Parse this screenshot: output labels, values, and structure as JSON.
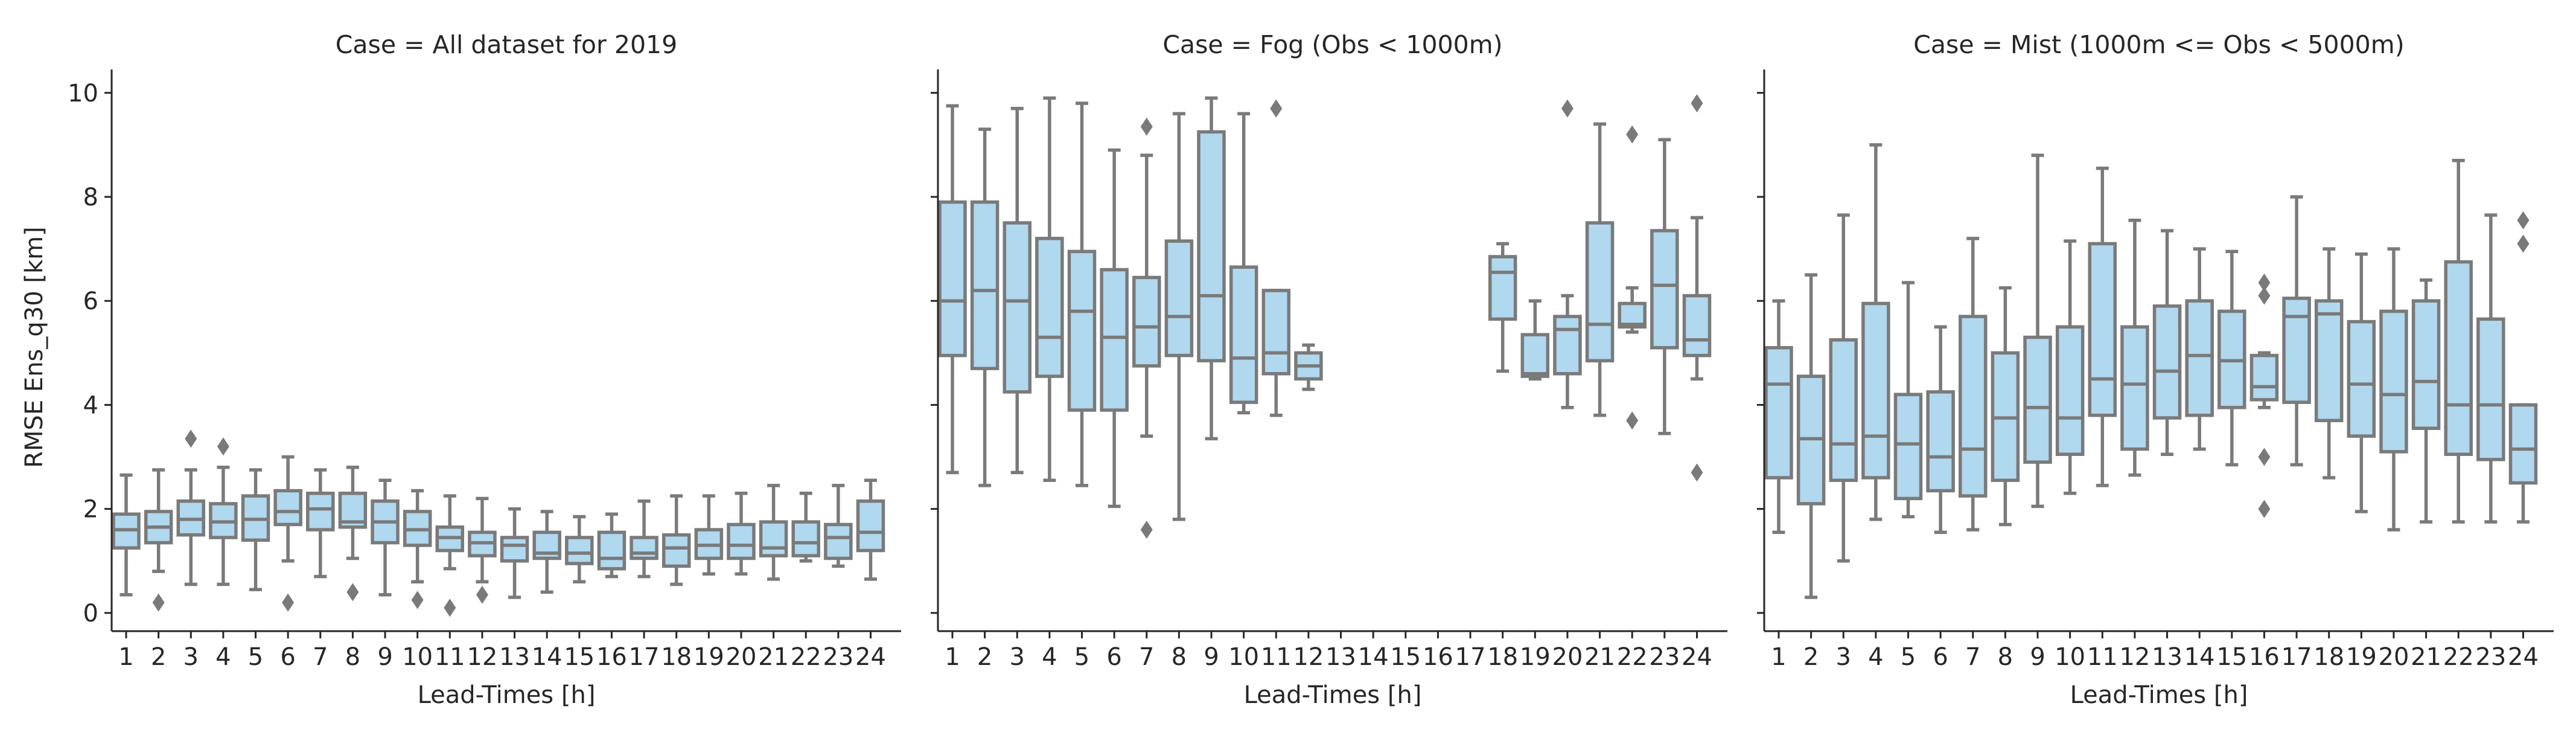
{
  "colors": {
    "box_fill": "#b0d8ee",
    "box_line": "#7a7a7a",
    "text": "#262626"
  },
  "chart_data": [
    {
      "type": "box",
      "title": "Case = All dataset for 2019",
      "xlabel": "Lead-Times [h]",
      "ylabel": "RMSE Ens_q30 [km]",
      "ylim": [
        -0.35,
        10.45
      ],
      "yticks": [
        0,
        2,
        4,
        6,
        8,
        10
      ],
      "categories": [
        "1",
        "2",
        "3",
        "4",
        "5",
        "6",
        "7",
        "8",
        "9",
        "10",
        "11",
        "12",
        "13",
        "14",
        "15",
        "16",
        "17",
        "18",
        "19",
        "20",
        "21",
        "22",
        "23",
        "24"
      ],
      "boxes": [
        {
          "lo": 0.35,
          "q1": 1.25,
          "med": 1.6,
          "q3": 1.9,
          "hi": 2.65,
          "fliers": []
        },
        {
          "lo": 0.8,
          "q1": 1.35,
          "med": 1.65,
          "q3": 1.95,
          "hi": 2.75,
          "fliers": [
            0.2
          ]
        },
        {
          "lo": 0.55,
          "q1": 1.5,
          "med": 1.8,
          "q3": 2.15,
          "hi": 2.75,
          "fliers": [
            3.35
          ]
        },
        {
          "lo": 0.55,
          "q1": 1.45,
          "med": 1.75,
          "q3": 2.1,
          "hi": 2.8,
          "fliers": [
            3.2
          ]
        },
        {
          "lo": 0.45,
          "q1": 1.4,
          "med": 1.8,
          "q3": 2.25,
          "hi": 2.75,
          "fliers": []
        },
        {
          "lo": 1.0,
          "q1": 1.7,
          "med": 1.95,
          "q3": 2.35,
          "hi": 3.0,
          "fliers": [
            0.2
          ]
        },
        {
          "lo": 0.7,
          "q1": 1.6,
          "med": 2.0,
          "q3": 2.3,
          "hi": 2.75,
          "fliers": []
        },
        {
          "lo": 1.05,
          "q1": 1.65,
          "med": 1.75,
          "q3": 2.3,
          "hi": 2.8,
          "fliers": [
            0.4
          ]
        },
        {
          "lo": 0.35,
          "q1": 1.35,
          "med": 1.75,
          "q3": 2.15,
          "hi": 2.55,
          "fliers": []
        },
        {
          "lo": 0.6,
          "q1": 1.3,
          "med": 1.6,
          "q3": 1.95,
          "hi": 2.35,
          "fliers": [
            0.25
          ]
        },
        {
          "lo": 0.85,
          "q1": 1.2,
          "med": 1.45,
          "q3": 1.65,
          "hi": 2.25,
          "fliers": [
            0.1
          ]
        },
        {
          "lo": 0.6,
          "q1": 1.1,
          "med": 1.35,
          "q3": 1.55,
          "hi": 2.2,
          "fliers": [
            0.35
          ]
        },
        {
          "lo": 0.3,
          "q1": 1.0,
          "med": 1.3,
          "q3": 1.45,
          "hi": 2.0,
          "fliers": []
        },
        {
          "lo": 0.4,
          "q1": 1.05,
          "med": 1.15,
          "q3": 1.55,
          "hi": 1.95,
          "fliers": []
        },
        {
          "lo": 0.6,
          "q1": 0.95,
          "med": 1.15,
          "q3": 1.45,
          "hi": 1.85,
          "fliers": []
        },
        {
          "lo": 0.7,
          "q1": 0.85,
          "med": 1.05,
          "q3": 1.55,
          "hi": 1.9,
          "fliers": []
        },
        {
          "lo": 0.7,
          "q1": 1.05,
          "med": 1.15,
          "q3": 1.45,
          "hi": 2.15,
          "fliers": []
        },
        {
          "lo": 0.55,
          "q1": 0.9,
          "med": 1.25,
          "q3": 1.5,
          "hi": 2.25,
          "fliers": []
        },
        {
          "lo": 0.75,
          "q1": 1.05,
          "med": 1.3,
          "q3": 1.6,
          "hi": 2.25,
          "fliers": []
        },
        {
          "lo": 0.75,
          "q1": 1.05,
          "med": 1.3,
          "q3": 1.7,
          "hi": 2.3,
          "fliers": []
        },
        {
          "lo": 0.65,
          "q1": 1.1,
          "med": 1.25,
          "q3": 1.75,
          "hi": 2.45,
          "fliers": []
        },
        {
          "lo": 1.0,
          "q1": 1.1,
          "med": 1.35,
          "q3": 1.75,
          "hi": 2.3,
          "fliers": []
        },
        {
          "lo": 0.9,
          "q1": 1.05,
          "med": 1.45,
          "q3": 1.7,
          "hi": 2.45,
          "fliers": []
        },
        {
          "lo": 0.65,
          "q1": 1.2,
          "med": 1.55,
          "q3": 2.15,
          "hi": 2.55,
          "fliers": []
        }
      ]
    },
    {
      "type": "box",
      "title": "Case = Fog (Obs < 1000m)",
      "xlabel": "Lead-Times [h]",
      "ylim": [
        -0.35,
        10.45
      ],
      "yticks": [
        0,
        2,
        4,
        6,
        8,
        10
      ],
      "categories": [
        "1",
        "2",
        "3",
        "4",
        "5",
        "6",
        "7",
        "8",
        "9",
        "10",
        "11",
        "12",
        "13",
        "14",
        "15",
        "16",
        "17",
        "18",
        "19",
        "20",
        "21",
        "22",
        "23",
        "24"
      ],
      "boxes": [
        {
          "lo": 2.7,
          "q1": 4.95,
          "med": 6.0,
          "q3": 7.9,
          "hi": 9.75,
          "fliers": []
        },
        {
          "lo": 2.45,
          "q1": 4.7,
          "med": 6.2,
          "q3": 7.9,
          "hi": 9.3,
          "fliers": []
        },
        {
          "lo": 2.7,
          "q1": 4.25,
          "med": 6.0,
          "q3": 7.5,
          "hi": 9.7,
          "fliers": []
        },
        {
          "lo": 2.55,
          "q1": 4.55,
          "med": 5.3,
          "q3": 7.2,
          "hi": 9.9,
          "fliers": []
        },
        {
          "lo": 2.45,
          "q1": 3.9,
          "med": 5.8,
          "q3": 6.95,
          "hi": 9.8,
          "fliers": []
        },
        {
          "lo": 2.05,
          "q1": 3.9,
          "med": 5.3,
          "q3": 6.6,
          "hi": 8.9,
          "fliers": []
        },
        {
          "lo": 3.4,
          "q1": 4.75,
          "med": 5.5,
          "q3": 6.45,
          "hi": 8.8,
          "fliers": [
            1.6,
            9.35
          ]
        },
        {
          "lo": 1.8,
          "q1": 4.95,
          "med": 5.7,
          "q3": 7.15,
          "hi": 9.6,
          "fliers": []
        },
        {
          "lo": 3.35,
          "q1": 4.85,
          "med": 6.1,
          "q3": 9.25,
          "hi": 9.9,
          "fliers": []
        },
        {
          "lo": 3.85,
          "q1": 4.05,
          "med": 4.9,
          "q3": 6.65,
          "hi": 9.6,
          "fliers": []
        },
        {
          "lo": 3.8,
          "q1": 4.6,
          "med": 5.0,
          "q3": 6.2,
          "hi": 6.2,
          "fliers": [
            9.7
          ]
        },
        {
          "lo": 4.3,
          "q1": 4.5,
          "med": 4.75,
          "q3": 5.0,
          "hi": 5.15,
          "fliers": []
        },
        null,
        null,
        null,
        null,
        null,
        {
          "lo": 4.65,
          "q1": 5.65,
          "med": 6.55,
          "q3": 6.85,
          "hi": 7.1,
          "fliers": []
        },
        {
          "lo": 4.5,
          "q1": 4.55,
          "med": 4.6,
          "q3": 5.35,
          "hi": 6.0,
          "fliers": []
        },
        {
          "lo": 3.95,
          "q1": 4.6,
          "med": 5.45,
          "q3": 5.7,
          "hi": 6.1,
          "fliers": [
            9.7
          ]
        },
        {
          "lo": 3.8,
          "q1": 4.85,
          "med": 5.55,
          "q3": 7.5,
          "hi": 9.4,
          "fliers": []
        },
        {
          "lo": 5.4,
          "q1": 5.5,
          "med": 5.55,
          "q3": 5.95,
          "hi": 6.25,
          "fliers": [
            3.7,
            9.2
          ]
        },
        {
          "lo": 3.45,
          "q1": 5.1,
          "med": 6.3,
          "q3": 7.35,
          "hi": 9.1,
          "fliers": []
        },
        {
          "lo": 4.5,
          "q1": 4.95,
          "med": 5.25,
          "q3": 6.1,
          "hi": 7.6,
          "fliers": [
            2.7,
            9.8
          ]
        }
      ]
    },
    {
      "type": "box",
      "title": "Case = Mist (1000m <= Obs < 5000m)",
      "xlabel": "Lead-Times [h]",
      "ylim": [
        -0.35,
        10.45
      ],
      "yticks": [
        0,
        2,
        4,
        6,
        8,
        10
      ],
      "categories": [
        "1",
        "2",
        "3",
        "4",
        "5",
        "6",
        "7",
        "8",
        "9",
        "10",
        "11",
        "12",
        "13",
        "14",
        "15",
        "16",
        "17",
        "18",
        "19",
        "20",
        "21",
        "22",
        "23",
        "24"
      ],
      "boxes": [
        {
          "lo": 1.55,
          "q1": 2.6,
          "med": 4.4,
          "q3": 5.1,
          "hi": 6.0,
          "fliers": []
        },
        {
          "lo": 0.3,
          "q1": 2.1,
          "med": 3.35,
          "q3": 4.55,
          "hi": 6.5,
          "fliers": []
        },
        {
          "lo": 1.0,
          "q1": 2.55,
          "med": 3.25,
          "q3": 5.25,
          "hi": 7.65,
          "fliers": []
        },
        {
          "lo": 1.8,
          "q1": 2.6,
          "med": 3.4,
          "q3": 5.95,
          "hi": 9.0,
          "fliers": []
        },
        {
          "lo": 1.85,
          "q1": 2.2,
          "med": 3.25,
          "q3": 4.2,
          "hi": 6.35,
          "fliers": []
        },
        {
          "lo": 1.55,
          "q1": 2.35,
          "med": 3.0,
          "q3": 4.25,
          "hi": 5.5,
          "fliers": []
        },
        {
          "lo": 1.6,
          "q1": 2.25,
          "med": 3.15,
          "q3": 5.7,
          "hi": 7.2,
          "fliers": []
        },
        {
          "lo": 1.7,
          "q1": 2.55,
          "med": 3.75,
          "q3": 5.0,
          "hi": 6.25,
          "fliers": []
        },
        {
          "lo": 2.05,
          "q1": 2.9,
          "med": 3.95,
          "q3": 5.3,
          "hi": 8.8,
          "fliers": []
        },
        {
          "lo": 2.3,
          "q1": 3.05,
          "med": 3.75,
          "q3": 5.5,
          "hi": 7.15,
          "fliers": []
        },
        {
          "lo": 2.45,
          "q1": 3.8,
          "med": 4.5,
          "q3": 7.1,
          "hi": 8.55,
          "fliers": []
        },
        {
          "lo": 2.65,
          "q1": 3.15,
          "med": 4.4,
          "q3": 5.5,
          "hi": 7.55,
          "fliers": []
        },
        {
          "lo": 3.05,
          "q1": 3.75,
          "med": 4.65,
          "q3": 5.9,
          "hi": 7.35,
          "fliers": []
        },
        {
          "lo": 3.15,
          "q1": 3.8,
          "med": 4.95,
          "q3": 6.0,
          "hi": 7.0,
          "fliers": []
        },
        {
          "lo": 2.85,
          "q1": 3.95,
          "med": 4.85,
          "q3": 5.8,
          "hi": 6.95,
          "fliers": []
        },
        {
          "lo": 3.95,
          "q1": 4.1,
          "med": 4.35,
          "q3": 4.95,
          "hi": 5.0,
          "fliers": [
            2.0,
            3.0,
            6.1,
            6.35
          ]
        },
        {
          "lo": 2.85,
          "q1": 4.05,
          "med": 5.7,
          "q3": 6.05,
          "hi": 8.0,
          "fliers": []
        },
        {
          "lo": 2.6,
          "q1": 3.7,
          "med": 5.75,
          "q3": 6.0,
          "hi": 7.0,
          "fliers": []
        },
        {
          "lo": 1.95,
          "q1": 3.4,
          "med": 4.4,
          "q3": 5.6,
          "hi": 6.9,
          "fliers": []
        },
        {
          "lo": 1.6,
          "q1": 3.1,
          "med": 4.2,
          "q3": 5.8,
          "hi": 7.0,
          "fliers": []
        },
        {
          "lo": 1.75,
          "q1": 3.55,
          "med": 4.45,
          "q3": 6.0,
          "hi": 6.4,
          "fliers": []
        },
        {
          "lo": 1.75,
          "q1": 3.05,
          "med": 4.0,
          "q3": 6.75,
          "hi": 8.7,
          "fliers": []
        },
        {
          "lo": 1.75,
          "q1": 2.95,
          "med": 4.0,
          "q3": 5.65,
          "hi": 7.65,
          "fliers": []
        },
        {
          "lo": 1.75,
          "q1": 2.5,
          "med": 3.15,
          "q3": 4.0,
          "hi": 4.0,
          "fliers": [
            7.1,
            7.55
          ]
        }
      ]
    }
  ]
}
